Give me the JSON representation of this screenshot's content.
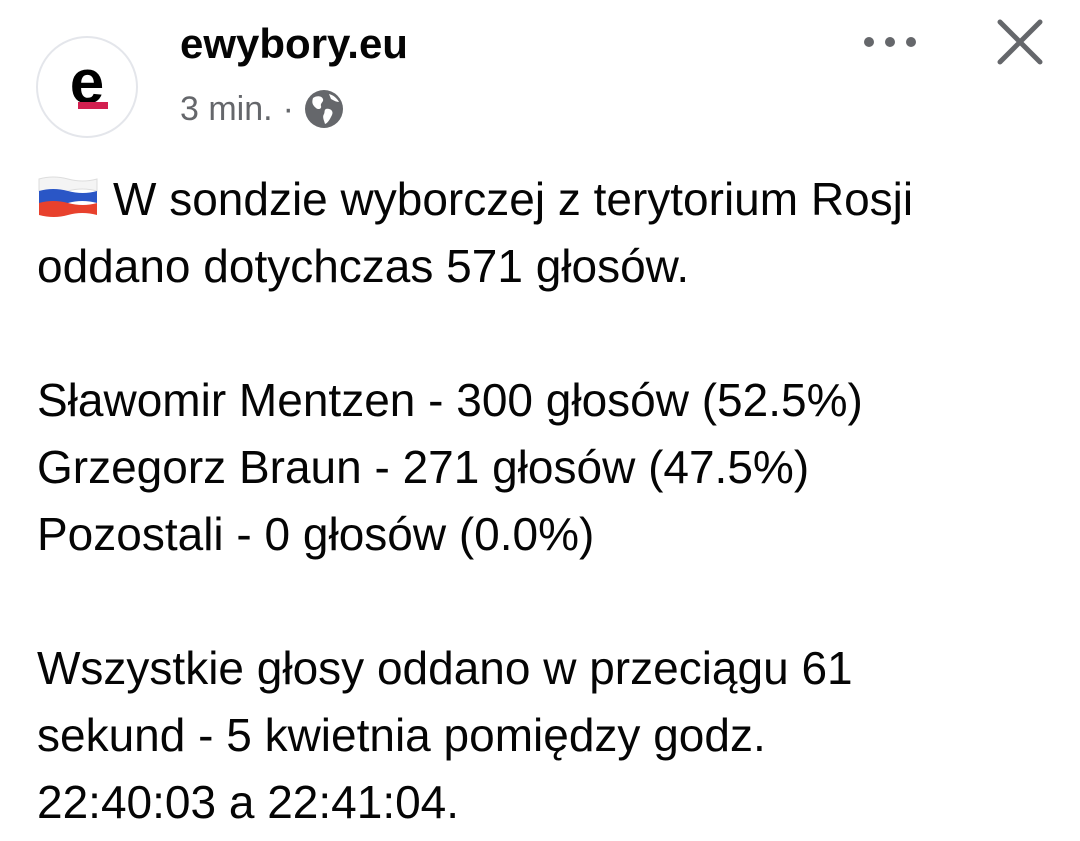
{
  "header": {
    "page_name": "ewybory.eu",
    "avatar_letter": "e",
    "timestamp": "3 min.",
    "separator": "·",
    "privacy_icon": "globe-icon",
    "brand_color": "#d21f4f"
  },
  "actions": {
    "more_icon": "more-dots-icon",
    "close_icon": "close-icon"
  },
  "post": {
    "flag_icon": "russia-flag-icon",
    "lines": [
      "W sondzie wyborczej z terytorium Rosji",
      "oddano dotychczas 571 głosów.",
      "",
      "Sławomir Mentzen - 300 głosów (52.5%)",
      "Grzegorz Braun - 271 głosów (47.5%)",
      "Pozostali - 0 głosów (0.0%)",
      "",
      "Wszystkie głosy oddano w przeciągu 61",
      "sekund - 5 kwietnia pomiędzy godz.",
      "22:40:03 a 22:41:04."
    ]
  }
}
